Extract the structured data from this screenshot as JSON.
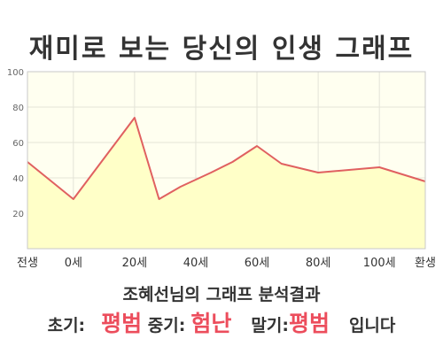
{
  "title": "재미로 보는 당신의 인생 그래프",
  "chart_data": {
    "type": "area",
    "title": "재미로 보는 당신의 인생 그래프",
    "xlabel": "",
    "ylabel": "",
    "x_ticks": [
      "전생",
      "0세",
      "20세",
      "40세",
      "60세",
      "80세",
      "100세",
      "환생"
    ],
    "y_ticks": [
      "100",
      "80",
      "60",
      "40",
      "20"
    ],
    "ylim": [
      0,
      100
    ],
    "grid": true,
    "series": [
      {
        "x": [
          -15,
          0,
          20,
          28,
          35,
          45,
          52,
          60,
          68,
          80,
          100,
          115
        ],
        "y": [
          49,
          28,
          74,
          28,
          35,
          43,
          49,
          58,
          48,
          43,
          46,
          38
        ]
      }
    ],
    "colors": {
      "line": "#e06060",
      "fill": "#ffffc8",
      "bg": "#fffff0",
      "grid": "#e4e4d8"
    }
  },
  "result": {
    "title": "조혜선님의 그래프 분석결과",
    "early_label": "초기:",
    "early_value": "평범",
    "mid_label": "중기:",
    "mid_value": "험난",
    "late_label": "말기:",
    "late_value": "평범",
    "ending": "입니다"
  }
}
